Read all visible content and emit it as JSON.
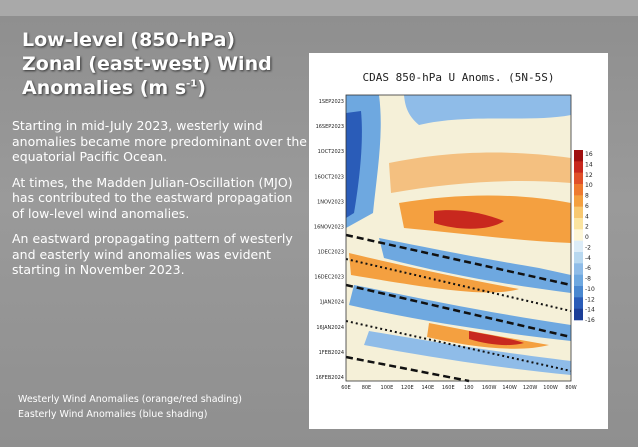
{
  "slide": {
    "title_line1": "Low-level (850-hPa)",
    "title_line2": "Zonal (east-west) Wind",
    "title_line3_prefix": "Anomalies (m s",
    "title_line3_sup": "-1",
    "title_line3_suffix": ")",
    "paragraphs": [
      "Starting in mid-July 2023, westerly wind anomalies became more predominant over the equatorial Pacific Ocean.",
      "At times, the Madden Julian-Oscillation (MJO) has contributed to the eastward propagation of low-level wind anomalies.",
      "An eastward propagating pattern of westerly and easterly wind anomalies was evident starting in November 2023."
    ],
    "legend_westerly": "Westerly Wind Anomalies (orange/red shading)",
    "legend_easterly": "Easterly Wind Anomalies (blue shading)"
  },
  "figure": {
    "title": "CDAS 850-hPa U Anoms. (5N-5S)",
    "y_labels": [
      "1SEP2023",
      "16SEP2023",
      "1OCT2023",
      "16OCT2023",
      "1NOV2023",
      "16NOV2023",
      "1DEC2023",
      "16DEC2023",
      "1JAN2024",
      "16JAN2024",
      "1FEB2024",
      "16FEB2024"
    ],
    "x_labels": [
      "60E",
      "80E",
      "100E",
      "120E",
      "140E",
      "160E",
      "180",
      "160W",
      "140W",
      "120W",
      "100W",
      "80W"
    ],
    "colorbar_labels": [
      "16",
      "14",
      "12",
      "10",
      "8",
      "6",
      "4",
      "2",
      "0",
      "-2",
      "-4",
      "-6",
      "-8",
      "-10",
      "-12",
      "-14",
      "-16"
    ],
    "colors": {
      "westerly": "#f4a040",
      "strong_westerly": "#c8281e",
      "easterly": "#6ea8e0",
      "strong_easterly": "#2a5cb8",
      "neutral": "#f5f0d8"
    }
  }
}
